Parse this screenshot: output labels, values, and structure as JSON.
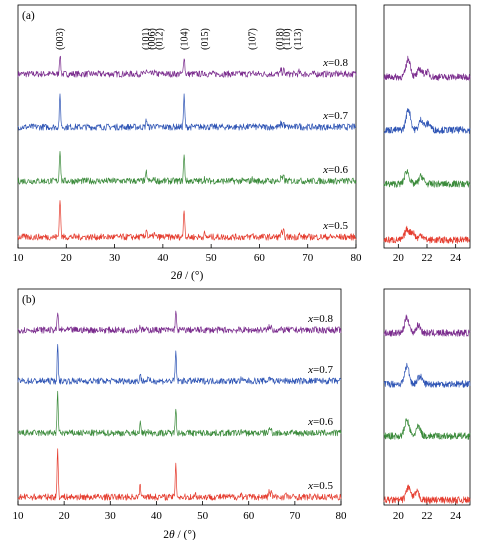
{
  "chart_data": [
    {
      "type": "line",
      "panel_label": "(a)",
      "xlabel_parts": {
        "pre": "2",
        "italic": "θ",
        "post": " / (°)"
      },
      "xlim": [
        10,
        80
      ],
      "x_ticks": [
        10,
        20,
        30,
        40,
        50,
        60,
        70,
        80
      ],
      "y_ticks_shown": false,
      "grid": false,
      "series": [
        {
          "name": "x=0.8",
          "name_parts": [
            "x",
            "=0.8"
          ],
          "color": "#7b2d8e",
          "noise": 0.9,
          "peaks": [
            {
              "x": 18.7,
              "h": 5.5
            },
            {
              "x": 36.6,
              "h": 1.2
            },
            {
              "x": 38.2,
              "h": 0.6
            },
            {
              "x": 44.4,
              "h": 5.0
            },
            {
              "x": 48.6,
              "h": 0.5
            },
            {
              "x": 58.6,
              "h": 0.6
            },
            {
              "x": 64.5,
              "h": 1.2
            },
            {
              "x": 65.0,
              "h": 1.1
            },
            {
              "x": 68.2,
              "h": 0.6
            }
          ]
        },
        {
          "name": "x=0.7",
          "name_parts": [
            "x",
            "=0.7"
          ],
          "color": "#2f55b5",
          "noise": 0.9,
          "peaks": [
            {
              "x": 18.7,
              "h": 8.5
            },
            {
              "x": 36.6,
              "h": 2.2
            },
            {
              "x": 38.2,
              "h": 0.7
            },
            {
              "x": 44.4,
              "h": 8.5
            },
            {
              "x": 48.6,
              "h": 0.7
            },
            {
              "x": 58.6,
              "h": 0.7
            },
            {
              "x": 64.5,
              "h": 1.2
            },
            {
              "x": 65.0,
              "h": 1.2
            },
            {
              "x": 68.2,
              "h": 0.7
            }
          ]
        },
        {
          "name": "x=0.6",
          "name_parts": [
            "x",
            "=0.6"
          ],
          "color": "#3a8a3a",
          "noise": 0.9,
          "peaks": [
            {
              "x": 18.7,
              "h": 9.0
            },
            {
              "x": 36.6,
              "h": 2.5
            },
            {
              "x": 38.2,
              "h": 0.8
            },
            {
              "x": 44.4,
              "h": 7.0
            },
            {
              "x": 48.6,
              "h": 0.7
            },
            {
              "x": 58.6,
              "h": 0.7
            },
            {
              "x": 64.5,
              "h": 1.2
            },
            {
              "x": 65.0,
              "h": 1.2
            },
            {
              "x": 68.2,
              "h": 0.8
            }
          ]
        },
        {
          "name": "x=0.5",
          "name_parts": [
            "x",
            "=0.5"
          ],
          "color": "#e53c2e",
          "noise": 0.9,
          "peaks": [
            {
              "x": 18.7,
              "h": 11.0
            },
            {
              "x": 36.6,
              "h": 2.5
            },
            {
              "x": 38.2,
              "h": 1.0
            },
            {
              "x": 44.4,
              "h": 8.0
            },
            {
              "x": 48.6,
              "h": 0.9
            },
            {
              "x": 58.6,
              "h": 0.9
            },
            {
              "x": 64.5,
              "h": 1.6
            },
            {
              "x": 65.0,
              "h": 1.5
            },
            {
              "x": 68.2,
              "h": 0.9
            }
          ]
        }
      ],
      "annotations": [
        {
          "text": "(003)",
          "x": 18.7
        },
        {
          "text": "(101)",
          "x": 36.5
        },
        {
          "text": "(006)",
          "x": 37.8
        },
        {
          "text": "(012)",
          "x": 39.3
        },
        {
          "text": "(104)",
          "x": 44.5
        },
        {
          "text": "(015)",
          "x": 48.7
        },
        {
          "text": "(107)",
          "x": 58.6
        },
        {
          "text": "(018)",
          "x": 64.3
        },
        {
          "text": "(110)",
          "x": 65.7
        },
        {
          "text": "(113)",
          "x": 68.0
        }
      ],
      "inset": {
        "xlim": [
          19,
          25
        ],
        "x_ticks": [
          20,
          22,
          24
        ],
        "noise": 1.3,
        "series": [
          {
            "color": "#7b2d8e",
            "peaks": [
              {
                "x": 20.7,
                "h": 7
              },
              {
                "x": 21.5,
                "h": 3
              },
              {
                "x": 22.0,
                "h": 2
              }
            ]
          },
          {
            "color": "#2f55b5",
            "peaks": [
              {
                "x": 20.7,
                "h": 8
              },
              {
                "x": 21.6,
                "h": 4
              },
              {
                "x": 22.1,
                "h": 2.5
              }
            ]
          },
          {
            "color": "#3a8a3a",
            "peaks": [
              {
                "x": 20.6,
                "h": 5
              },
              {
                "x": 21.6,
                "h": 3
              }
            ]
          },
          {
            "color": "#e53c2e",
            "peaks": [
              {
                "x": 20.6,
                "h": 4
              },
              {
                "x": 21.0,
                "h": 3
              },
              {
                "x": 21.6,
                "h": 2
              }
            ]
          }
        ]
      }
    },
    {
      "type": "line",
      "panel_label": "(b)",
      "xlabel_parts": {
        "pre": "2",
        "italic": "θ",
        "post": " / (°)"
      },
      "xlim": [
        10,
        80
      ],
      "x_ticks": [
        10,
        20,
        30,
        40,
        50,
        60,
        70,
        80
      ],
      "y_ticks_shown": false,
      "grid": false,
      "series": [
        {
          "name": "x=0.8",
          "name_parts": [
            "x",
            "=0.8"
          ],
          "color": "#7b2d8e",
          "noise": 0.9,
          "peaks": [
            {
              "x": 18.6,
              "h": 5.0
            },
            {
              "x": 36.5,
              "h": 1.2
            },
            {
              "x": 44.2,
              "h": 5.0
            },
            {
              "x": 64.4,
              "h": 1.0
            },
            {
              "x": 64.9,
              "h": 0.9
            }
          ]
        },
        {
          "name": "x=0.7",
          "name_parts": [
            "x",
            "=0.7"
          ],
          "color": "#2f55b5",
          "noise": 0.9,
          "peaks": [
            {
              "x": 18.6,
              "h": 9.5
            },
            {
              "x": 36.5,
              "h": 2.0
            },
            {
              "x": 38.1,
              "h": 0.7
            },
            {
              "x": 44.2,
              "h": 8.0
            },
            {
              "x": 58.4,
              "h": 0.6
            },
            {
              "x": 64.4,
              "h": 1.2
            },
            {
              "x": 64.9,
              "h": 1.1
            }
          ]
        },
        {
          "name": "x=0.6",
          "name_parts": [
            "x",
            "=0.6"
          ],
          "color": "#3a8a3a",
          "noise": 0.9,
          "peaks": [
            {
              "x": 18.6,
              "h": 11.0
            },
            {
              "x": 36.5,
              "h": 2.5
            },
            {
              "x": 38.1,
              "h": 0.8
            },
            {
              "x": 44.2,
              "h": 7.5
            },
            {
              "x": 58.4,
              "h": 0.7
            },
            {
              "x": 64.4,
              "h": 1.3
            },
            {
              "x": 64.9,
              "h": 1.2
            }
          ]
        },
        {
          "name": "x=0.5",
          "name_parts": [
            "x",
            "=0.5"
          ],
          "color": "#e53c2e",
          "noise": 0.9,
          "peaks": [
            {
              "x": 18.6,
              "h": 13.5
            },
            {
              "x": 36.5,
              "h": 3.5
            },
            {
              "x": 38.1,
              "h": 1.0
            },
            {
              "x": 44.2,
              "h": 9.5
            },
            {
              "x": 48.5,
              "h": 0.8
            },
            {
              "x": 58.4,
              "h": 1.0
            },
            {
              "x": 64.4,
              "h": 1.8
            },
            {
              "x": 64.9,
              "h": 1.6
            },
            {
              "x": 68.0,
              "h": 0.9
            }
          ]
        }
      ],
      "annotations": [],
      "inset": {
        "xlim": [
          19,
          25
        ],
        "x_ticks": [
          20,
          22,
          24
        ],
        "noise": 1.3,
        "series": [
          {
            "color": "#7b2d8e",
            "peaks": [
              {
                "x": 20.6,
                "h": 6
              },
              {
                "x": 21.4,
                "h": 3
              }
            ]
          },
          {
            "color": "#2f55b5",
            "peaks": [
              {
                "x": 20.6,
                "h": 7
              },
              {
                "x": 21.5,
                "h": 3
              }
            ]
          },
          {
            "color": "#3a8a3a",
            "peaks": [
              {
                "x": 20.6,
                "h": 6
              },
              {
                "x": 21.4,
                "h": 3.5
              }
            ]
          },
          {
            "color": "#e53c2e",
            "peaks": [
              {
                "x": 20.7,
                "h": 5
              },
              {
                "x": 21.3,
                "h": 3
              }
            ]
          }
        ]
      }
    }
  ]
}
